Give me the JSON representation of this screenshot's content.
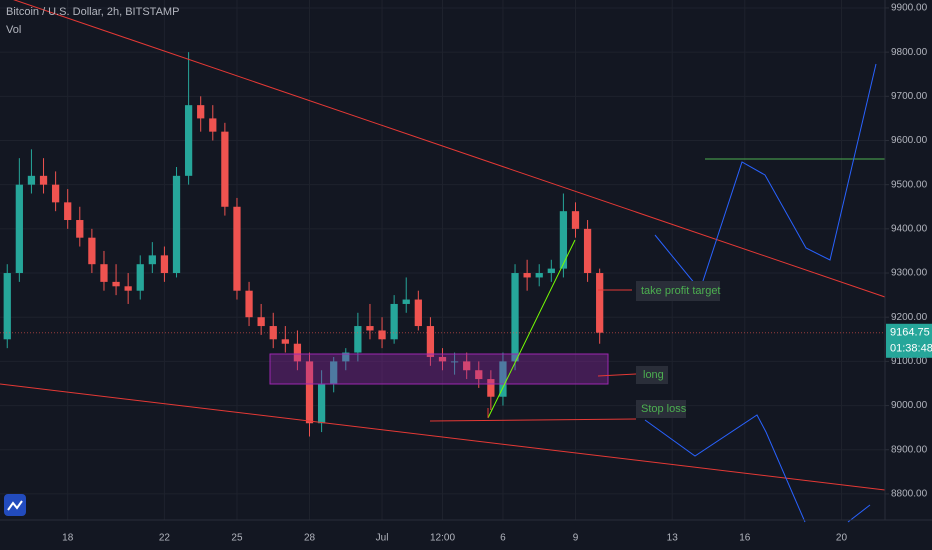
{
  "chart_data": {
    "type": "candlestick",
    "title": "Bitcoin / U.S. Dollar, 2h, BITSTAMP",
    "subtitle": "Vol",
    "x": [
      15.5,
      16,
      16.5,
      17,
      17.5,
      18,
      18.5,
      19,
      19.5,
      20,
      20.5,
      21,
      21.5,
      22,
      22.5,
      23,
      23.5,
      24,
      24.5,
      25,
      25.5,
      26,
      26.5,
      27,
      27.5,
      28,
      28.5,
      29,
      29.5,
      30,
      30.5,
      31,
      31.5,
      32,
      32.5,
      33,
      33.5,
      34,
      34.5,
      35,
      35.5,
      36,
      36.5,
      37,
      37.5,
      38,
      38.5,
      39,
      39.5,
      40
    ],
    "open": [
      9150,
      9300,
      9500,
      9520,
      9500,
      9460,
      9420,
      9380,
      9320,
      9280,
      9270,
      9260,
      9320,
      9340,
      9300,
      9520,
      9680,
      9650,
      9620,
      9450,
      9260,
      9200,
      9180,
      9150,
      9140,
      9100,
      8960,
      9050,
      9100,
      9120,
      9180,
      9170,
      9150,
      9230,
      9240,
      9180,
      9110,
      9100,
      9100,
      9080,
      9060,
      9020,
      9100,
      9300,
      9290,
      9300,
      9310,
      9440,
      9400,
      9300
    ],
    "high": [
      9320,
      9560,
      9580,
      9560,
      9530,
      9490,
      9450,
      9400,
      9350,
      9320,
      9300,
      9340,
      9370,
      9360,
      9540,
      9800,
      9700,
      9680,
      9640,
      9470,
      9280,
      9230,
      9210,
      9180,
      9170,
      9120,
      9080,
      9110,
      9130,
      9210,
      9230,
      9200,
      9250,
      9290,
      9260,
      9200,
      9130,
      9120,
      9120,
      9100,
      9080,
      9120,
      9320,
      9330,
      9320,
      9330,
      9480,
      9460,
      9420,
      9310
    ],
    "low": [
      9130,
      9280,
      9480,
      9480,
      9440,
      9400,
      9360,
      9300,
      9260,
      9250,
      9230,
      9240,
      9300,
      9280,
      9290,
      9500,
      9620,
      9600,
      9430,
      9240,
      9180,
      9160,
      9130,
      9120,
      9080,
      8930,
      8940,
      9030,
      9080,
      9100,
      9150,
      9130,
      9140,
      9210,
      9170,
      9090,
      9080,
      9070,
      9060,
      9040,
      8990,
      9000,
      9080,
      9260,
      9270,
      9280,
      9290,
      9380,
      9280,
      9140
    ],
    "close": [
      9300,
      9500,
      9520,
      9500,
      9460,
      9420,
      9380,
      9320,
      9280,
      9270,
      9260,
      9320,
      9340,
      9300,
      9520,
      9680,
      9650,
      9620,
      9450,
      9260,
      9200,
      9180,
      9150,
      9140,
      9100,
      8960,
      9050,
      9100,
      9120,
      9180,
      9170,
      9150,
      9230,
      9240,
      9180,
      9110,
      9100,
      9100,
      9080,
      9060,
      9020,
      9100,
      9300,
      9290,
      9300,
      9310,
      9440,
      9400,
      9300,
      9165
    ],
    "up_color": "#26a69a",
    "down_color": "#ef5350",
    "xlim": [
      15.2,
      51.8
    ],
    "xticks": [
      {
        "value": 18,
        "label": "18"
      },
      {
        "value": 22,
        "label": "22"
      },
      {
        "value": 25,
        "label": "25"
      },
      {
        "value": 28,
        "label": "28"
      },
      {
        "value": 31,
        "label": "Jul"
      },
      {
        "value": 33.5,
        "label": "12:00"
      },
      {
        "value": 36,
        "label": "6"
      },
      {
        "value": 39,
        "label": "9"
      },
      {
        "value": 43,
        "label": "13"
      },
      {
        "value": 46,
        "label": "16"
      },
      {
        "value": 50,
        "label": "20"
      }
    ],
    "ylim": [
      8741,
      9918
    ],
    "yticks": [
      {
        "value": 8800,
        "label": "8800.00"
      },
      {
        "value": 8900,
        "label": "8900.00"
      },
      {
        "value": 9000,
        "label": "9000.00"
      },
      {
        "value": 9100,
        "label": "9100.00"
      },
      {
        "value": 9200,
        "label": "9200.00"
      },
      {
        "value": 9300,
        "label": "9300.00"
      },
      {
        "value": 9400,
        "label": "9400.00"
      },
      {
        "value": 9500,
        "label": "9500.00"
      },
      {
        "value": 9600,
        "label": "9600.00"
      },
      {
        "value": 9700,
        "label": "9700.00"
      },
      {
        "value": 9800,
        "label": "9800.00"
      },
      {
        "value": 9900,
        "label": "9900.00"
      }
    ],
    "grid": true,
    "last_price": 9164.75,
    "countdown": "01:38:48",
    "annotations": [
      "take profit target",
      "long",
      "Stop loss"
    ]
  }
}
